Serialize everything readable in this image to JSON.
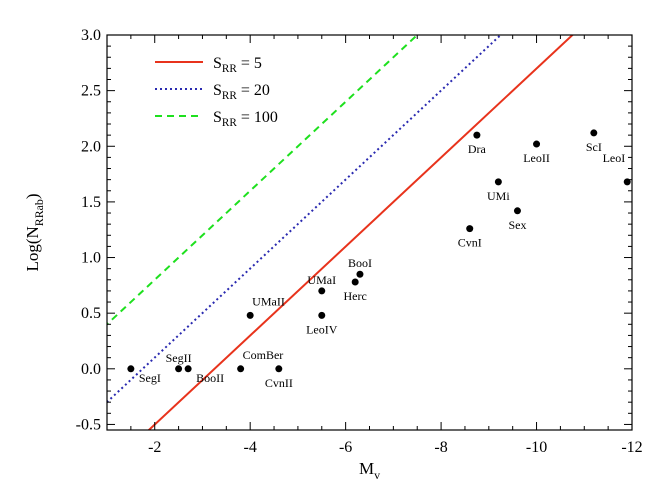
{
  "chart_data": {
    "type": "scatter",
    "xlabel": {
      "main": "M",
      "sub": "v"
    },
    "ylabel": {
      "main": "Log(N",
      "sub": "RRab",
      "end": ")"
    },
    "xlim": [
      -1.0,
      -12.0
    ],
    "ylim": [
      -0.55,
      3.0
    ],
    "x_ticks": [
      -2,
      -4,
      -6,
      -8,
      -10,
      -12
    ],
    "x_tick_labels": [
      "-2",
      "-4",
      "-6",
      "-8",
      "-10",
      "-12"
    ],
    "y_ticks": [
      -0.5,
      0.0,
      0.5,
      1.0,
      1.5,
      2.0,
      2.5,
      3.0
    ],
    "y_tick_labels": [
      "-0.5",
      "0.0",
      "0.5",
      "1.0",
      "1.5",
      "2.0",
      "2.5",
      "3.0"
    ],
    "points": [
      {
        "name": "SegI",
        "x": -1.5,
        "y": 0.0,
        "label_pos": "below-right"
      },
      {
        "name": "SegII",
        "x": -2.5,
        "y": 0.0,
        "label_pos": "above"
      },
      {
        "name": "BooII",
        "x": -2.7,
        "y": 0.0,
        "label_pos": "below-right"
      },
      {
        "name": "ComBer",
        "x": -3.8,
        "y": 0.0,
        "label_pos": "above-right"
      },
      {
        "name": "CvnII",
        "x": -4.6,
        "y": 0.0,
        "label_pos": "below"
      },
      {
        "name": "UMaII",
        "x": -4.0,
        "y": 0.48,
        "label_pos": "above-right"
      },
      {
        "name": "LeoIV",
        "x": -5.5,
        "y": 0.48,
        "label_pos": "below"
      },
      {
        "name": "UMaI",
        "x": -5.5,
        "y": 0.7,
        "label_pos": "above"
      },
      {
        "name": "Herc",
        "x": -6.2,
        "y": 0.78,
        "label_pos": "below"
      },
      {
        "name": "BooI",
        "x": -6.3,
        "y": 0.85,
        "label_pos": "above"
      },
      {
        "name": "CvnI",
        "x": -8.6,
        "y": 1.26,
        "label_pos": "below"
      },
      {
        "name": "Sex",
        "x": -9.6,
        "y": 1.42,
        "label_pos": "below"
      },
      {
        "name": "UMi",
        "x": -9.2,
        "y": 1.68,
        "label_pos": "below"
      },
      {
        "name": "Dra",
        "x": -8.75,
        "y": 2.1,
        "label_pos": "below"
      },
      {
        "name": "LeoII",
        "x": -10.0,
        "y": 2.02,
        "label_pos": "below"
      },
      {
        "name": "ScI",
        "x": -11.2,
        "y": 2.12,
        "label_pos": "below"
      },
      {
        "name": "LeoI",
        "x": -11.9,
        "y": 1.68,
        "label_pos": "above-left"
      }
    ],
    "lines": [
      {
        "label_main": "S",
        "label_sub": "RR",
        "label_value": " = 5",
        "S": 5,
        "color": "#e8331c",
        "dash": "solid"
      },
      {
        "label_main": "S",
        "label_sub": "RR",
        "label_value": " = 20",
        "S": 20,
        "color": "#2a2ab0",
        "dash": "dotted"
      },
      {
        "label_main": "S",
        "label_sub": "RR",
        "label_value": " = 100",
        "S": 100,
        "color": "#1ee01e",
        "dash": "dashed"
      }
    ],
    "legend_position": "top-left",
    "grid": false
  }
}
